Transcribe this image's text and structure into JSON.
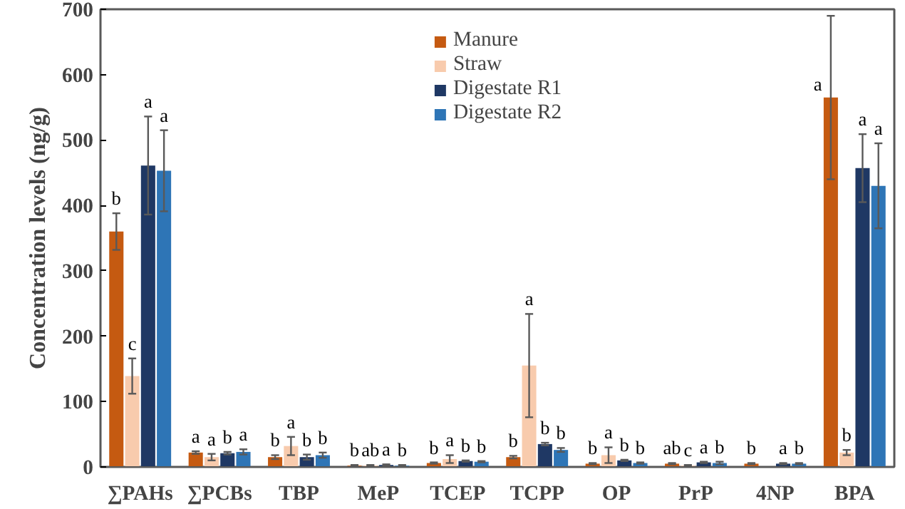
{
  "chart_data": {
    "type": "bar",
    "ylabel": "Concentration levels (ng/g)",
    "categories": [
      "∑PAHs",
      "∑PCBs",
      "TBP",
      "MeP",
      "TCEP",
      "TCPP",
      "OP",
      "PrP",
      "4NP",
      "BPA"
    ],
    "series": [
      {
        "name": "Manure",
        "color": "#c55a11",
        "values": [
          360,
          22,
          15,
          2,
          6,
          15,
          5,
          5,
          5,
          565
        ],
        "errors": [
          28,
          2,
          3,
          1,
          1,
          2,
          1,
          1,
          1,
          125
        ],
        "value_labels": [
          "b",
          "a",
          "b",
          "b",
          "b",
          "b",
          "b",
          "ab",
          "b",
          "a"
        ]
      },
      {
        "name": "Straw",
        "color": "#f8cbad",
        "values": [
          139,
          15,
          32,
          2,
          12,
          155,
          18,
          2,
          null,
          22
        ],
        "errors": [
          27,
          5,
          14,
          1,
          6,
          79,
          12,
          1,
          null,
          4
        ],
        "value_labels": [
          "c",
          "a",
          "a",
          "ab",
          "a",
          "a",
          "a",
          "c",
          null,
          "b"
        ]
      },
      {
        "name": "Digestate R1",
        "color": "#1f3864",
        "values": [
          461,
          21,
          15,
          3,
          9,
          35,
          10,
          7,
          5,
          457
        ],
        "errors": [
          75,
          2,
          4,
          1,
          1,
          2,
          1,
          1,
          1,
          52
        ],
        "value_labels": [
          "a",
          "b",
          "b",
          "a",
          "b",
          "b",
          "b",
          "a",
          "a",
          "a"
        ]
      },
      {
        "name": "Digestate R2",
        "color": "#2e75b6",
        "values": [
          453,
          23,
          18,
          2,
          8,
          26,
          6,
          6,
          5,
          430
        ],
        "errors": [
          62,
          4,
          4,
          1,
          1,
          3,
          1,
          2,
          1,
          65
        ],
        "value_labels": [
          "a",
          "a",
          "b",
          "b",
          "b",
          "b",
          "b",
          "b",
          "b",
          "a"
        ]
      }
    ],
    "ylim": [
      0,
      700
    ],
    "yticks": [
      0,
      100,
      200,
      300,
      400,
      500,
      600,
      700
    ],
    "grid": false,
    "legend": "top"
  }
}
